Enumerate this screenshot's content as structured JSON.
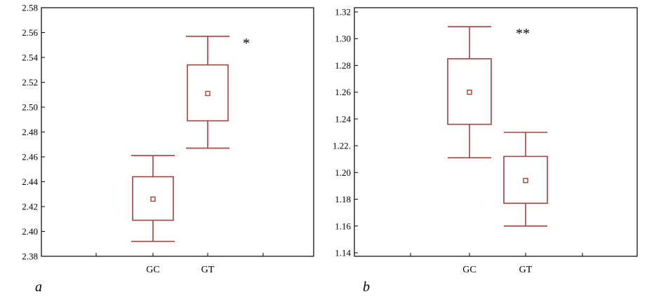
{
  "colors": {
    "box": "#a8403f",
    "frame": "#000000",
    "background": "#ffffff"
  },
  "chart_data": [
    {
      "type": "box",
      "panel_label": "a",
      "significance": "*",
      "significance_over": "GT",
      "categories": [
        "GC",
        "GT"
      ],
      "boxes": [
        {
          "category": "GC",
          "whisker_low": 2.392,
          "q1": 2.409,
          "median": 2.426,
          "q3": 2.444,
          "whisker_high": 2.461
        },
        {
          "category": "GT",
          "whisker_low": 2.467,
          "q1": 2.489,
          "median": 2.511,
          "q3": 2.534,
          "whisker_high": 2.557
        }
      ],
      "ylim": [
        2.38,
        2.58
      ],
      "yticks": [
        2.38,
        2.4,
        2.42,
        2.44,
        2.46,
        2.48,
        2.5,
        2.52,
        2.54,
        2.56,
        2.58
      ],
      "ytick_labels": [
        "2.38",
        "2.40",
        "2.42",
        "2.44",
        "2.46",
        "2.48",
        "2.50",
        "2.52",
        "2.54",
        "2.56",
        "2.58"
      ],
      "title": "",
      "xlabel": "",
      "ylabel": "",
      "grid": false
    },
    {
      "type": "box",
      "panel_label": "b",
      "significance": "**",
      "significance_over": "GT",
      "categories": [
        "GC",
        "GT"
      ],
      "boxes": [
        {
          "category": "GC",
          "whisker_low": 1.211,
          "q1": 1.236,
          "median": 1.26,
          "q3": 1.285,
          "whisker_high": 1.309
        },
        {
          "category": "GT",
          "whisker_low": 1.16,
          "q1": 1.177,
          "median": 1.194,
          "q3": 1.212,
          "whisker_high": 1.23
        }
      ],
      "ylim": [
        1.14,
        1.32
      ],
      "yticks": [
        1.14,
        1.16,
        1.18,
        1.2,
        1.22,
        1.24,
        1.26,
        1.28,
        1.3,
        1.32
      ],
      "ytick_labels": [
        "1.14",
        "1.16",
        "1.18",
        "1.20",
        "1.22.",
        "1.24",
        "1.26",
        "1.28",
        "1.30",
        "1.32"
      ],
      "title": "",
      "xlabel": "",
      "ylabel": "",
      "grid": false
    }
  ]
}
